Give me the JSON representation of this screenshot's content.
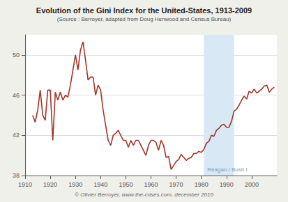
{
  "chart_data": {
    "type": "line",
    "title": "Evolution of the Gini Index for the United-States, 1913-2009",
    "subtitle": "(Source : Berroyer, adapted from Doug Henwood and Census Bureau)",
    "footer": "© Olivier Berroyer, www.the-crises.com, december 2010",
    "x": [
      1913,
      1914,
      1915,
      1916,
      1917,
      1918,
      1919,
      1920,
      1921,
      1922,
      1923,
      1924,
      1925,
      1926,
      1927,
      1928,
      1929,
      1930,
      1931,
      1932,
      1933,
      1934,
      1935,
      1936,
      1937,
      1938,
      1939,
      1940,
      1941,
      1942,
      1943,
      1944,
      1945,
      1946,
      1947,
      1948,
      1949,
      1950,
      1951,
      1952,
      1953,
      1954,
      1955,
      1956,
      1957,
      1958,
      1959,
      1960,
      1961,
      1962,
      1963,
      1964,
      1965,
      1966,
      1967,
      1968,
      1969,
      1970,
      1971,
      1972,
      1973,
      1974,
      1975,
      1976,
      1977,
      1978,
      1979,
      1980,
      1981,
      1982,
      1983,
      1984,
      1985,
      1986,
      1987,
      1988,
      1989,
      1990,
      1991,
      1992,
      1993,
      1994,
      1995,
      1996,
      1997,
      1998,
      1999,
      2000,
      2001,
      2002,
      2003,
      2004,
      2005,
      2006,
      2007,
      2008,
      2009
    ],
    "values": [
      44.0,
      43.3,
      44.5,
      46.5,
      44.0,
      43.5,
      46.5,
      46.5,
      41.5,
      46.3,
      45.5,
      46.3,
      45.5,
      46.0,
      45.8,
      47.0,
      48.5,
      50.0,
      48.5,
      50.5,
      51.3,
      49.5,
      47.5,
      47.8,
      47.8,
      46.0,
      47.0,
      46.5,
      44.5,
      43.0,
      41.5,
      41.0,
      42.0,
      42.2,
      42.5,
      42.0,
      41.5,
      41.5,
      40.8,
      41.5,
      41.0,
      41.5,
      41.5,
      41.0,
      40.5,
      40.0,
      41.0,
      41.5,
      41.5,
      41.3,
      40.5,
      41.5,
      41.0,
      39.8,
      39.9,
      38.6,
      39.0,
      39.4,
      39.6,
      40.1,
      39.8,
      39.5,
      39.7,
      39.8,
      40.2,
      40.2,
      40.4,
      40.3,
      40.6,
      41.2,
      41.4,
      42.0,
      41.9,
      42.5,
      42.7,
      43.0,
      43.1,
      42.8,
      42.8,
      43.4,
      44.4,
      44.6,
      45.0,
      45.5,
      45.9,
      45.6,
      46.4,
      46.2,
      46.6,
      46.2,
      46.4,
      46.6,
      46.9,
      47.0,
      46.3,
      46.6,
      46.8
    ],
    "color": "#a0372a",
    "xlim": [
      1910,
      2010
    ],
    "xticks": [
      1910,
      1920,
      1930,
      1940,
      1950,
      1960,
      1970,
      1980,
      1990,
      2000
    ],
    "ylim": [
      38,
      52
    ],
    "yticks": [
      38,
      42,
      46,
      50
    ],
    "grid": true,
    "shaded_regions": [
      {
        "start": 1981,
        "end": 1993,
        "label": "Reagan / Bush I",
        "color": "#d8e8f4"
      }
    ]
  }
}
